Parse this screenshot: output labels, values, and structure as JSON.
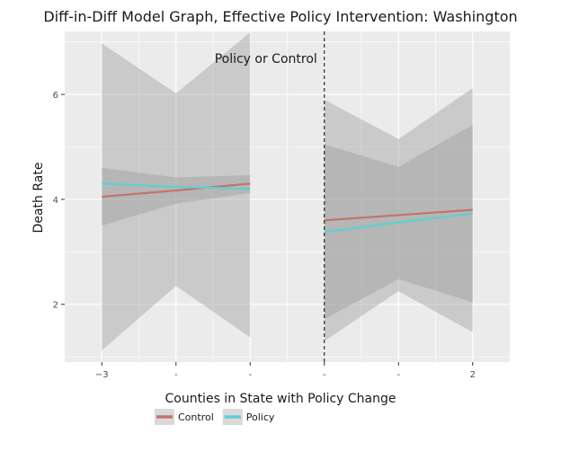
{
  "chart_data": {
    "type": "line",
    "title": "Diff-in-Diff Model Graph, Effective Policy Intervention: Washington",
    "xlabel": "Counties in State with Policy Change",
    "ylabel": "Death Rate",
    "xlim": [
      -3.5,
      2.5
    ],
    "ylim": [
      0.9,
      7.2
    ],
    "x_tick_values": [
      -3,
      -2,
      -1,
      0,
      1,
      2
    ],
    "x_tick_labels": [
      "−3",
      "-",
      "-",
      "-",
      "-",
      "2"
    ],
    "y_ticks": [
      2,
      4,
      6
    ],
    "y_tick_labels": [
      "2",
      "4",
      "6"
    ],
    "grid": true,
    "cutoff_x": 0,
    "annotation": "Policy or Control",
    "legend_position": "bottom",
    "series": [
      {
        "name": "Control",
        "color": "#c0756b",
        "pre": {
          "x": [
            -3,
            -2,
            -1
          ],
          "y": [
            4.05,
            4.17,
            4.3
          ],
          "upper": [
            4.6,
            4.42,
            4.46
          ],
          "lower": [
            3.5,
            3.92,
            4.12
          ]
        },
        "post": {
          "x": [
            0,
            1,
            2
          ],
          "y": [
            3.6,
            3.7,
            3.8
          ],
          "upper": [
            5.9,
            5.15,
            6.12
          ],
          "lower": [
            1.3,
            2.25,
            1.47
          ]
        }
      },
      {
        "name": "Policy",
        "color": "#5ecfd2",
        "pre": {
          "x": [
            -3,
            -2,
            -1
          ],
          "y": [
            4.3,
            4.24,
            4.2
          ],
          "upper": [
            6.97,
            6.02,
            7.18
          ],
          "lower": [
            1.12,
            2.35,
            1.37
          ]
        },
        "post": {
          "x": [
            0,
            1,
            2
          ],
          "y": [
            3.38,
            3.56,
            3.73
          ],
          "upper": [
            5.05,
            4.62,
            5.42
          ],
          "lower": [
            1.72,
            2.48,
            2.04
          ]
        }
      }
    ]
  }
}
